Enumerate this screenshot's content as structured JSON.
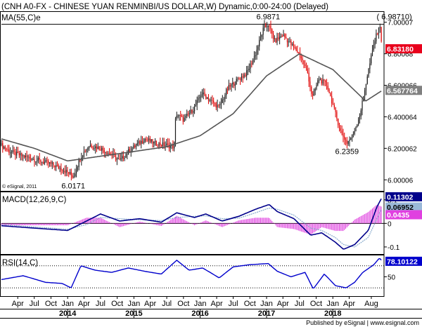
{
  "header": {
    "title": "(CNH A0-FX - CHINESE YUAN RENMINBI/US DOLLAR,W) Dynamic,0:00-24:00 (Delayed)",
    "ma_label": "MA(55,C)e"
  },
  "footer": {
    "copyright": "© eSignal, 2011",
    "published": "Published by eSignal | www.esignal.com"
  },
  "colors": {
    "up_candle": "#1a1a1a",
    "down_candle": "#e00000",
    "ma_line": "#555555",
    "macd_line": "#00008b",
    "signal_line": "#88aacc",
    "hist": "#dd33dd",
    "rsi_line": "#0000cc",
    "price_tag": "#e8001c",
    "ma_tag": "#808080",
    "macd_tag": "#00008b",
    "signal_tag": "#9ab8d8",
    "hist_tag": "#e040e0",
    "rsi_tag": "#0000cc"
  },
  "chart_data": [
    {
      "type": "candlestick",
      "panel": "price",
      "x_ticks": [
        "Apr",
        "Jul",
        "Oct",
        "Jan",
        "Apr",
        "Jul",
        "Oct",
        "Jan",
        "Apr",
        "Jul",
        "Oct",
        "Jan",
        "Apr",
        "Jul",
        "Oct",
        "Jan",
        "Apr",
        "Jul",
        "Oct",
        "Jan",
        "Apr",
        "Aug"
      ],
      "years": [
        "2014",
        "2015",
        "2016",
        "2017",
        "2018"
      ],
      "y_ticks": [
        6.0,
        6.2,
        6.4,
        6.6,
        6.8,
        7.0
      ],
      "y_tick_labels": [
        "6.00006",
        "6.200062",
        "6.400064",
        "6.600066",
        "6.80068",
        "7.00007"
      ],
      "ylim": [
        5.93,
        7.07
      ],
      "price_path": [
        [
          "2013-01-01",
          6.22
        ],
        [
          "2013-02-15",
          6.18
        ],
        [
          "2013-04-01",
          6.16
        ],
        [
          "2013-06-01",
          6.14
        ],
        [
          "2013-08-01",
          6.12
        ],
        [
          "2013-10-01",
          6.1
        ],
        [
          "2013-12-01",
          6.07
        ],
        [
          "2014-01-10",
          6.04
        ],
        [
          "2014-02-01",
          6.02
        ],
        [
          "2014-03-15",
          6.15
        ],
        [
          "2014-05-01",
          6.22
        ],
        [
          "2014-07-01",
          6.2
        ],
        [
          "2014-09-01",
          6.16
        ],
        [
          "2014-10-15",
          6.12
        ],
        [
          "2014-12-01",
          6.18
        ],
        [
          "2015-01-15",
          6.22
        ],
        [
          "2015-03-01",
          6.26
        ],
        [
          "2015-05-01",
          6.23
        ],
        [
          "2015-07-01",
          6.22
        ],
        [
          "2015-08-10",
          6.21
        ],
        [
          "2015-08-20",
          6.42
        ],
        [
          "2015-10-01",
          6.38
        ],
        [
          "2015-12-01",
          6.46
        ],
        [
          "2016-01-10",
          6.55
        ],
        [
          "2016-03-01",
          6.5
        ],
        [
          "2016-04-15",
          6.46
        ],
        [
          "2016-06-01",
          6.58
        ],
        [
          "2016-08-01",
          6.64
        ],
        [
          "2016-09-15",
          6.68
        ],
        [
          "2016-11-01",
          6.8
        ],
        [
          "2016-12-15",
          6.96
        ],
        [
          "2017-01-10",
          6.9871
        ],
        [
          "2017-02-15",
          6.88
        ],
        [
          "2017-04-01",
          6.92
        ],
        [
          "2017-05-15",
          6.86
        ],
        [
          "2017-07-01",
          6.8
        ],
        [
          "2017-08-15",
          6.68
        ],
        [
          "2017-09-10",
          6.52
        ],
        [
          "2017-10-15",
          6.64
        ],
        [
          "2017-12-01",
          6.6
        ],
        [
          "2018-01-10",
          6.44
        ],
        [
          "2018-02-15",
          6.3
        ],
        [
          "2018-03-20",
          6.2359
        ],
        [
          "2018-04-20",
          6.28
        ],
        [
          "2018-06-01",
          6.42
        ],
        [
          "2018-07-10",
          6.66
        ],
        [
          "2018-08-15",
          6.86
        ],
        [
          "2018-09-15",
          6.9871
        ],
        [
          "2018-10-01",
          6.8318
        ]
      ],
      "ma_path": [
        [
          "2013-01-01",
          6.26
        ],
        [
          "2013-07-01",
          6.2
        ],
        [
          "2014-01-01",
          6.12
        ],
        [
          "2014-07-01",
          6.15
        ],
        [
          "2015-01-01",
          6.18
        ],
        [
          "2015-07-01",
          6.21
        ],
        [
          "2016-01-01",
          6.28
        ],
        [
          "2016-07-01",
          6.42
        ],
        [
          "2017-01-01",
          6.66
        ],
        [
          "2017-07-01",
          6.8
        ],
        [
          "2018-01-01",
          6.7
        ],
        [
          "2018-07-01",
          6.5
        ],
        [
          "2018-10-01",
          6.567764
        ]
      ],
      "annotations": [
        {
          "date": "2014-02-01",
          "value": 6.0171,
          "label": "6.0171",
          "pos": "below"
        },
        {
          "date": "2017-01-10",
          "value": 6.9871,
          "label": "6.9871",
          "pos": "above"
        },
        {
          "date": "2018-03-20",
          "value": 6.2359,
          "label": "6.2359",
          "pos": "below"
        },
        {
          "date": "2018-09-15",
          "value": 6.9871,
          "label": "( 6.98710)",
          "pos": "above-right"
        }
      ],
      "last_price": 6.8318,
      "last_price_label": "6.83180",
      "last_ma": 6.567764,
      "last_ma_label": "6.567764",
      "ref_line": 6.9871
    },
    {
      "type": "line",
      "panel": "macd",
      "title": "MACD(12,26,9,C)",
      "ylim": [
        -0.13,
        0.135
      ],
      "zero": 0,
      "y_tick_labels": [
        {
          "v": 0.1,
          "t": "0.1"
        },
        {
          "v": 0,
          "t": "0"
        },
        {
          "v": -0.1,
          "t": "-0.1"
        }
      ],
      "macd_path": [
        [
          "2013-01-01",
          -0.01
        ],
        [
          "2013-07-01",
          -0.02
        ],
        [
          "2014-01-01",
          -0.03
        ],
        [
          "2014-04-15",
          0.01
        ],
        [
          "2014-07-01",
          0.04
        ],
        [
          "2014-10-15",
          0.01
        ],
        [
          "2015-02-01",
          0.02
        ],
        [
          "2015-06-01",
          0.005
        ],
        [
          "2015-08-25",
          0.045
        ],
        [
          "2015-12-01",
          0.025
        ],
        [
          "2016-02-01",
          0.04
        ],
        [
          "2016-05-01",
          0.01
        ],
        [
          "2016-08-01",
          0.03
        ],
        [
          "2016-11-01",
          0.06
        ],
        [
          "2017-01-15",
          0.08
        ],
        [
          "2017-03-01",
          0.05
        ],
        [
          "2017-06-01",
          0.02
        ],
        [
          "2017-09-01",
          -0.05
        ],
        [
          "2017-11-01",
          -0.04
        ],
        [
          "2018-01-15",
          -0.08
        ],
        [
          "2018-03-01",
          -0.11
        ],
        [
          "2018-05-01",
          -0.09
        ],
        [
          "2018-07-15",
          -0.03
        ],
        [
          "2018-09-01",
          0.07
        ],
        [
          "2018-10-01",
          0.11302
        ]
      ],
      "signal_path": [
        [
          "2013-01-01",
          -0.005
        ],
        [
          "2013-07-01",
          -0.015
        ],
        [
          "2014-01-01",
          -0.025
        ],
        [
          "2014-04-15",
          -0.005
        ],
        [
          "2014-07-01",
          0.025
        ],
        [
          "2014-10-15",
          0.02
        ],
        [
          "2015-02-01",
          0.015
        ],
        [
          "2015-06-01",
          0.012
        ],
        [
          "2015-08-25",
          0.025
        ],
        [
          "2015-12-01",
          0.03
        ],
        [
          "2016-02-01",
          0.032
        ],
        [
          "2016-05-01",
          0.02
        ],
        [
          "2016-08-01",
          0.022
        ],
        [
          "2016-11-01",
          0.045
        ],
        [
          "2017-01-15",
          0.065
        ],
        [
          "2017-03-01",
          0.06
        ],
        [
          "2017-06-01",
          0.035
        ],
        [
          "2017-09-01",
          -0.02
        ],
        [
          "2017-11-01",
          -0.03
        ],
        [
          "2018-01-15",
          -0.06
        ],
        [
          "2018-03-01",
          -0.09
        ],
        [
          "2018-05-01",
          -0.1
        ],
        [
          "2018-07-15",
          -0.06
        ],
        [
          "2018-09-01",
          0.02
        ],
        [
          "2018-10-01",
          0.06952
        ]
      ],
      "last_macd_label": "0.11302",
      "last_signal_label": "0.06952",
      "last_hist_label": "0.0435",
      "last_macd": 0.11302,
      "last_signal": 0.06952,
      "last_hist": 0.0435
    },
    {
      "type": "line",
      "panel": "rsi",
      "title": "RSI(14,C)",
      "ylim": [
        15,
        90
      ],
      "y_tick_labels": [
        {
          "v": 50,
          "t": "50"
        }
      ],
      "dotted": [
        30,
        70
      ],
      "rsi_path": [
        [
          "2013-01-01",
          45
        ],
        [
          "2013-05-01",
          52
        ],
        [
          "2013-09-01",
          40
        ],
        [
          "2013-12-01",
          38
        ],
        [
          "2014-01-20",
          30
        ],
        [
          "2014-03-15",
          70
        ],
        [
          "2014-06-01",
          62
        ],
        [
          "2014-09-01",
          58
        ],
        [
          "2014-12-01",
          66
        ],
        [
          "2015-03-01",
          60
        ],
        [
          "2015-06-01",
          55
        ],
        [
          "2015-08-25",
          80
        ],
        [
          "2015-11-01",
          62
        ],
        [
          "2016-01-15",
          66
        ],
        [
          "2016-04-15",
          48
        ],
        [
          "2016-07-01",
          68
        ],
        [
          "2016-10-01",
          72
        ],
        [
          "2017-01-10",
          74
        ],
        [
          "2017-03-01",
          60
        ],
        [
          "2017-05-15",
          50
        ],
        [
          "2017-08-01",
          58
        ],
        [
          "2017-09-15",
          28
        ],
        [
          "2017-11-15",
          55
        ],
        [
          "2018-01-15",
          34
        ],
        [
          "2018-03-15",
          30
        ],
        [
          "2018-05-01",
          40
        ],
        [
          "2018-06-15",
          58
        ],
        [
          "2018-08-15",
          72
        ],
        [
          "2018-09-15",
          84
        ],
        [
          "2018-10-01",
          78.10122
        ]
      ],
      "last_rsi": 78.10122,
      "last_rsi_label": "78.10122"
    }
  ]
}
